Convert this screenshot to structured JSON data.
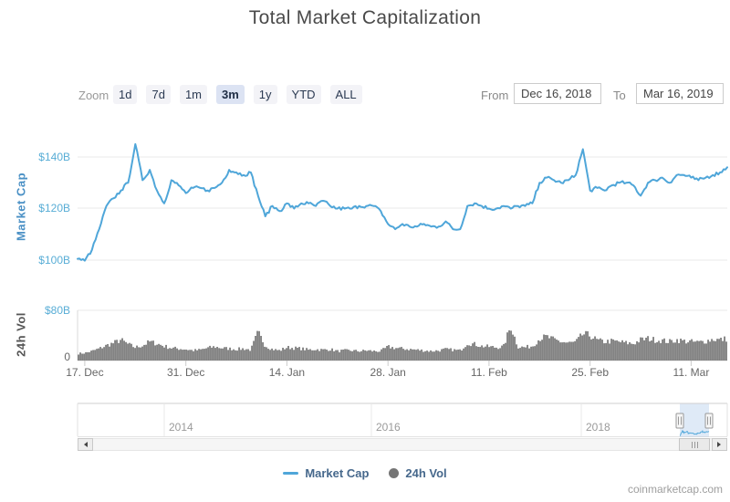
{
  "title": "Total Market Capitalization",
  "toolbar": {
    "zoom_label": "Zoom",
    "buttons": [
      "1d",
      "7d",
      "1m",
      "3m",
      "1y",
      "YTD",
      "ALL"
    ],
    "selected": "3m",
    "from_label": "From",
    "from_value": "Dec 16, 2018",
    "to_label": "To",
    "to_value": "Mar 16, 2019"
  },
  "chart_data": {
    "type": "line",
    "title": "Total Market Capitalization",
    "start_date": "2018-12-16",
    "end_date": "2019-03-16",
    "interval": "daily",
    "x_tick_labels": [
      "17. Dec",
      "31. Dec",
      "14. Jan",
      "28. Jan",
      "11. Feb",
      "25. Feb",
      "11. Mar"
    ],
    "legend_position": "bottom",
    "series": [
      {
        "name": "Market Cap",
        "type": "line",
        "unit": "USD billions",
        "color": "#4fa6d9",
        "axis": {
          "label": "Market Cap",
          "ticks": [
            "$140B",
            "$120B",
            "$100B"
          ],
          "range": [
            95,
            150
          ]
        },
        "values": [
          100.5,
          99.8,
          104,
          112,
          121,
          124,
          127,
          130,
          145,
          131,
          135,
          127,
          122,
          131,
          129,
          126,
          128,
          128,
          127,
          128,
          130,
          135,
          134,
          133,
          134,
          125,
          117,
          121,
          119,
          122,
          120,
          122,
          122,
          121,
          123,
          121,
          120,
          120,
          120,
          121,
          121,
          121,
          119,
          114,
          112,
          114,
          113,
          113,
          114,
          113,
          113,
          115,
          112,
          112,
          121,
          122,
          121,
          120,
          120,
          121,
          120,
          121,
          121,
          122,
          130,
          132,
          131,
          130,
          131,
          133,
          143,
          127,
          128,
          127,
          129,
          130,
          130,
          129,
          125,
          130,
          131,
          132,
          130,
          133,
          133,
          132,
          131,
          132,
          133,
          134,
          136
        ]
      },
      {
        "name": "24h Vol",
        "type": "column",
        "unit": "USD billions",
        "color": "#757575",
        "axis": {
          "label": "24h Vol",
          "ticks": [
            "$80B",
            "0"
          ],
          "range": [
            0,
            80
          ]
        },
        "values": [
          11,
          12,
          15,
          19,
          24,
          28,
          33,
          26,
          21,
          24,
          30,
          27,
          23,
          20,
          19,
          18,
          16,
          17,
          20,
          22,
          20,
          19,
          18,
          19,
          17,
          45,
          24,
          18,
          16,
          21,
          20,
          19,
          17,
          18,
          17,
          18,
          15,
          16,
          16,
          15,
          16,
          15,
          15,
          22,
          20,
          19,
          18,
          17,
          16,
          15,
          16,
          18,
          17,
          16,
          28,
          26,
          23,
          22,
          21,
          22,
          55,
          22,
          21,
          23,
          35,
          38,
          33,
          30,
          28,
          29,
          42,
          40,
          32,
          30,
          31,
          30,
          28,
          27,
          33,
          35,
          33,
          32,
          30,
          33,
          31,
          30,
          29,
          31,
          34,
          33,
          35
        ]
      }
    ]
  },
  "navigator": {
    "year_labels": [
      "2014",
      "2016",
      "2018"
    ]
  },
  "legend": {
    "items": [
      "Market Cap",
      "24h Vol"
    ]
  },
  "watermark": "coinmarketcap.com",
  "colors": {
    "line": "#4fa6d9",
    "volume": "#757575",
    "axis_blue": "#58add6",
    "selection": "#6e9ed9"
  }
}
